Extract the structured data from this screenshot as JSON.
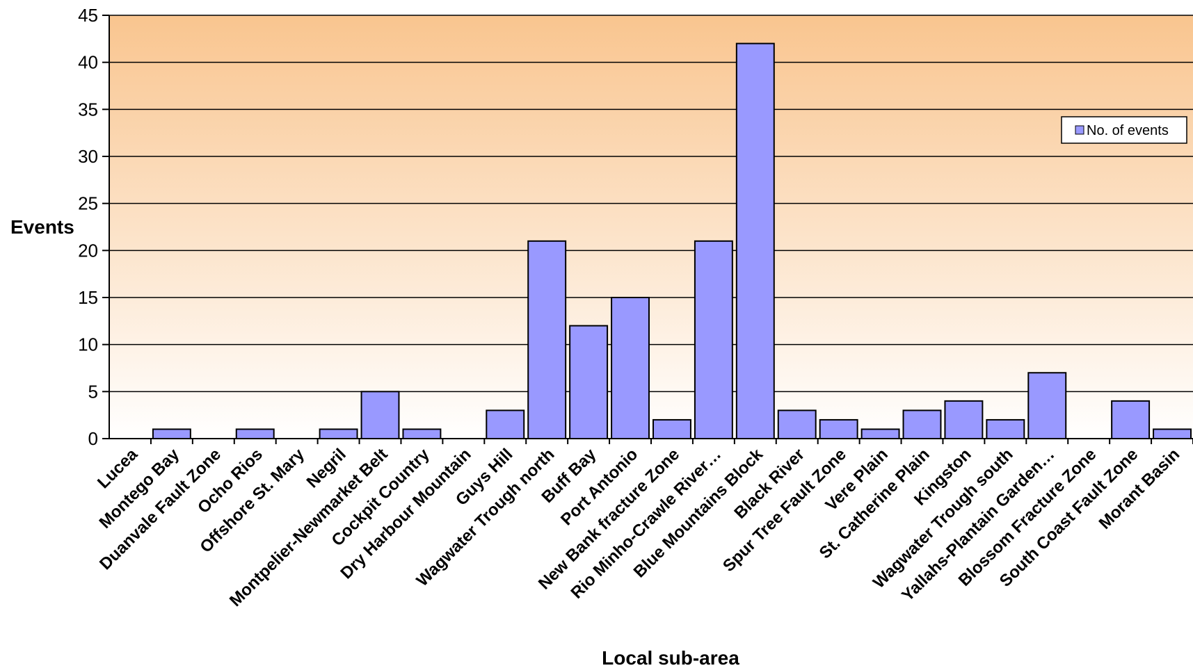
{
  "chart_data": {
    "type": "bar",
    "xlabel": "Local sub-area",
    "ylabel": "Events",
    "ylim": [
      0,
      45
    ],
    "ytick_step": 5,
    "grid": true,
    "legend_position": "top-right",
    "categories": [
      "Lucea",
      "Montego Bay",
      "Duanvale Fault Zone",
      "Ocho Rios",
      "Offshore St. Mary",
      "Negril",
      "Montpelier-Newmarket Belt",
      "Cockpit Country",
      "Dry Harbour Mountain",
      "Guys Hill",
      "Wagwater Trough north",
      "Buff Bay",
      "Port Antonio",
      "New Bank fracture Zone",
      "Rio Minho-Crawle River…",
      "Blue Mountains Block",
      "Black River",
      "Spur Tree Fault Zone",
      "Vere Plain",
      "St. Catherine Plain",
      "Kingston",
      "Wagwater Trough south",
      "Yallahs-Plantain Garden…",
      "Blossom Fracture Zone",
      "South Coast Fault Zone",
      "Morant Basin"
    ],
    "series": [
      {
        "name": "No. of events",
        "values": [
          0,
          1,
          0,
          1,
          0,
          1,
          5,
          1,
          0,
          3,
          21,
          12,
          15,
          2,
          21,
          42,
          3,
          2,
          1,
          3,
          4,
          2,
          7,
          0,
          4,
          1
        ]
      }
    ],
    "colors": {
      "bar_fill": "#9999ff",
      "bar_stroke": "#000000",
      "plot_bg_top": "#f9c58f",
      "plot_bg_bottom": "#ffffff",
      "gridline": "#000000"
    }
  }
}
